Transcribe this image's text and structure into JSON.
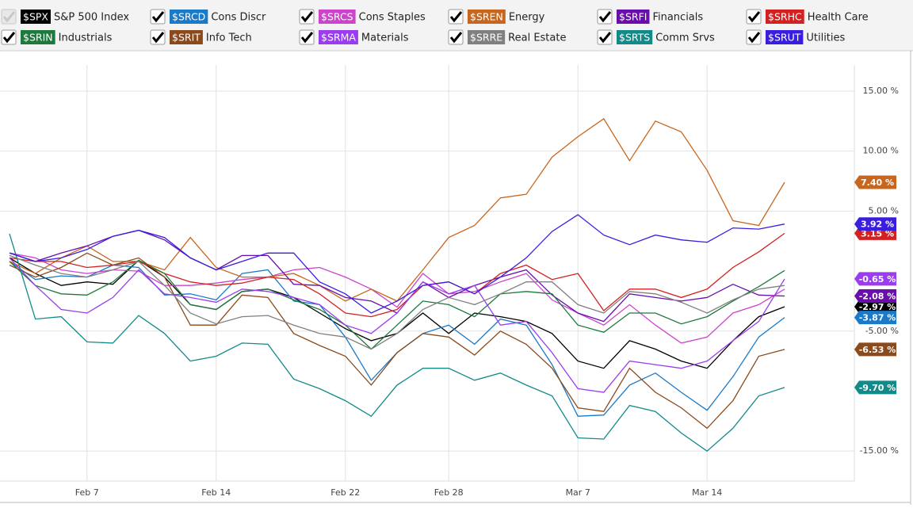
{
  "chart_data": {
    "type": "line",
    "categories": [
      null,
      null,
      null,
      "Feb 7",
      null,
      null,
      null,
      null,
      "Feb 14",
      null,
      null,
      null,
      null,
      "Feb 22",
      null,
      null,
      null,
      "Feb 28",
      null,
      null,
      null,
      null,
      "Mar 7",
      null,
      null,
      null,
      null,
      "Mar 14",
      null,
      null,
      null
    ],
    "ylim": [
      -17.5,
      18.3
    ],
    "yticks": [
      {
        "value": 15,
        "label": "15.00 %"
      },
      {
        "value": 10,
        "label": "10.00 %"
      },
      {
        "value": 5,
        "label": "5.00 %"
      },
      {
        "value": -5,
        "label": "-5.00 %"
      },
      {
        "value": -15,
        "label": "-15.00 %"
      }
    ],
    "grid": true,
    "series": [
      {
        "symbol": "$SPX",
        "name": "S&P 500 Index",
        "color": "#000000",
        "end_label": "-2.97 %",
        "values": [
          1.1,
          -0.2,
          -1.2,
          -0.9,
          -1.1,
          0.9,
          -0.5,
          -2.8,
          -3.2,
          -1.7,
          -1.5,
          -2.2,
          -3.5,
          -4.8,
          -5.8,
          -5.2,
          -3.5,
          -5.2,
          -3.5,
          -3.8,
          -4.2,
          -5.2,
          -7.5,
          -8.1,
          -5.8,
          -6.5,
          -7.5,
          -8.1,
          -5.8,
          -3.8,
          -2.97
        ]
      },
      {
        "symbol": "$SRCD",
        "name": "Cons Discr",
        "color": "#1a7ac8",
        "end_label": "-3.87 %",
        "values": [
          0.8,
          -0.7,
          -0.4,
          -0.5,
          0.5,
          0.3,
          -2.0,
          -1.9,
          -2.4,
          -0.2,
          0.1,
          -2.5,
          -2.8,
          -5.5,
          -9.1,
          -6.8,
          -5.2,
          -4.5,
          -6.1,
          -4.0,
          -4.5,
          -7.8,
          -12.1,
          -12.0,
          -9.5,
          -8.5,
          -10.1,
          -11.6,
          -8.8,
          -5.5,
          -3.87
        ]
      },
      {
        "symbol": "$SRCS",
        "name": "Cons Staples",
        "color": "#cc44cc",
        "values": [
          1.5,
          1.1,
          0.1,
          -0.2,
          0.1,
          0,
          -1.2,
          -1.2,
          -1.0,
          -0.7,
          -0.5,
          0.1,
          0.3,
          -0.5,
          -1.5,
          -3.0,
          -0.2,
          -1.9,
          -1.7,
          -0.9,
          -0.2,
          -2.4,
          -3.5,
          -4.5,
          -2.8,
          -4.5,
          -6.0,
          -5.5,
          -3.5,
          -2.8,
          -1.5
        ]
      },
      {
        "symbol": "$SREN",
        "name": "Energy",
        "color": "#c8661e",
        "end_label": "7.40 %",
        "values": [
          0.8,
          -0.2,
          1.1,
          2.1,
          0.8,
          0.8,
          0.1,
          2.8,
          0.3,
          -0.5,
          -0.5,
          -0.2,
          -1.2,
          -2.5,
          -1.5,
          -2.5,
          0.1,
          2.8,
          3.8,
          6.1,
          6.4,
          9.5,
          11.2,
          12.7,
          9.2,
          12.5,
          11.6,
          8.4,
          4.2,
          3.8,
          7.4
        ]
      },
      {
        "symbol": "$SRFI",
        "name": "Financials",
        "color": "#6a0dad",
        "end_label": "-2.08 %",
        "values": [
          1.5,
          0.8,
          1.5,
          2.1,
          2.9,
          3.4,
          2.6,
          1.1,
          0.1,
          1.3,
          1.3,
          -1.1,
          -1.2,
          -2.2,
          -2.5,
          -3.5,
          -0.9,
          -2.2,
          -1.2,
          -0.5,
          0.1,
          -2.0,
          -3.5,
          -4.2,
          -1.9,
          -2.2,
          -2.5,
          -2.2,
          -1.1,
          -2.0,
          -2.08
        ]
      },
      {
        "symbol": "$SRHC",
        "name": "Health Care",
        "color": "#d42020",
        "end_label": "3.15 %",
        "values": [
          1.1,
          0.8,
          0.8,
          0.3,
          0.5,
          0.8,
          -0.2,
          -0.9,
          -1.2,
          -1.0,
          -0.5,
          -0.7,
          -1.9,
          -3.5,
          -3.8,
          -3.2,
          -1.2,
          -0.9,
          -1.9,
          -0.2,
          0.5,
          -0.7,
          -0.2,
          -3.3,
          -1.5,
          -1.5,
          -2.2,
          -1.5,
          0.3,
          1.6,
          3.15
        ]
      },
      {
        "symbol": "$SRIN",
        "name": "Industrials",
        "color": "#1e7a3c",
        "values": [
          0.8,
          -1.2,
          -1.9,
          -2.0,
          -0.9,
          0.9,
          -0.2,
          -2.8,
          -3.2,
          -1.7,
          -1.5,
          -2.4,
          -3.2,
          -4.5,
          -6.5,
          -4.5,
          -2.5,
          -2.8,
          -3.8,
          -1.9,
          -1.7,
          -1.9,
          -4.5,
          -5.1,
          -3.5,
          -3.5,
          -4.4,
          -3.8,
          -2.5,
          -1.3,
          0.05
        ]
      },
      {
        "symbol": "$SRIT",
        "name": "Info Tech",
        "color": "#8b4a1c",
        "end_label": "-6.53 %",
        "values": [
          0.5,
          -0.5,
          0.3,
          1.5,
          0.5,
          1.1,
          -0.5,
          -4.5,
          -4.5,
          -2.0,
          -2.2,
          -5.2,
          -6.2,
          -7.1,
          -9.5,
          -6.8,
          -5.2,
          -5.5,
          -7.0,
          -5.0,
          -6.1,
          -8.1,
          -11.4,
          -11.7,
          -8.1,
          -10.1,
          -11.4,
          -13.1,
          -10.8,
          -7.1,
          -6.53
        ]
      },
      {
        "symbol": "$SRMA",
        "name": "Materials",
        "color": "#9b3cf0",
        "end_label": "-0.65 %",
        "values": [
          1.1,
          -1.2,
          -3.2,
          -3.5,
          -2.2,
          0.1,
          -1.9,
          -2.2,
          -2.6,
          -1.5,
          -1.7,
          -2.2,
          -2.8,
          -4.5,
          -5.2,
          -3.5,
          -0.9,
          -1.9,
          -1.2,
          -4.5,
          -4.2,
          -6.8,
          -9.8,
          -10.1,
          -7.5,
          -7.8,
          -8.1,
          -7.5,
          -5.8,
          -4.2,
          -0.65
        ]
      },
      {
        "symbol": "$SRRE",
        "name": "Real Estate",
        "color": "#808080",
        "values": [
          1.3,
          0.5,
          -0.2,
          -0.5,
          0.1,
          0.8,
          -1.2,
          -3.5,
          -4.4,
          -3.8,
          -3.7,
          -4.5,
          -5.2,
          -5.5,
          -6.5,
          -5.2,
          -3.2,
          -2.2,
          -2.8,
          -1.9,
          -0.9,
          -0.9,
          -2.8,
          -3.5,
          -1.7,
          -1.9,
          -2.6,
          -3.5,
          -2.4,
          -1.5,
          -1.2
        ]
      },
      {
        "symbol": "$SRTS",
        "name": "Comm Srvs",
        "color": "#138a8a",
        "end_label": "-9.70 %",
        "values": [
          3.1,
          -4.0,
          -3.8,
          -5.9,
          -6.0,
          -3.7,
          -5.2,
          -7.5,
          -7.1,
          -6.0,
          -6.1,
          -9.0,
          -9.8,
          -10.8,
          -12.1,
          -9.5,
          -8.1,
          -8.1,
          -9.1,
          -8.5,
          -9.5,
          -10.4,
          -13.9,
          -14.0,
          -11.2,
          -11.7,
          -13.5,
          -15.0,
          -13.1,
          -10.4,
          -9.7
        ]
      },
      {
        "symbol": "$SRUT",
        "name": "Utilities",
        "color": "#3a1ee0",
        "end_label": "3.92 %",
        "values": [
          1.5,
          0.8,
          1.1,
          1.8,
          2.9,
          3.4,
          2.8,
          1.1,
          0.1,
          0.8,
          1.5,
          1.5,
          -0.9,
          -1.9,
          -3.5,
          -2.5,
          -1.2,
          -0.9,
          -1.9,
          -0.5,
          1.1,
          3.3,
          4.7,
          3.0,
          2.2,
          3.0,
          2.6,
          2.4,
          3.6,
          3.5,
          3.92
        ]
      }
    ]
  }
}
